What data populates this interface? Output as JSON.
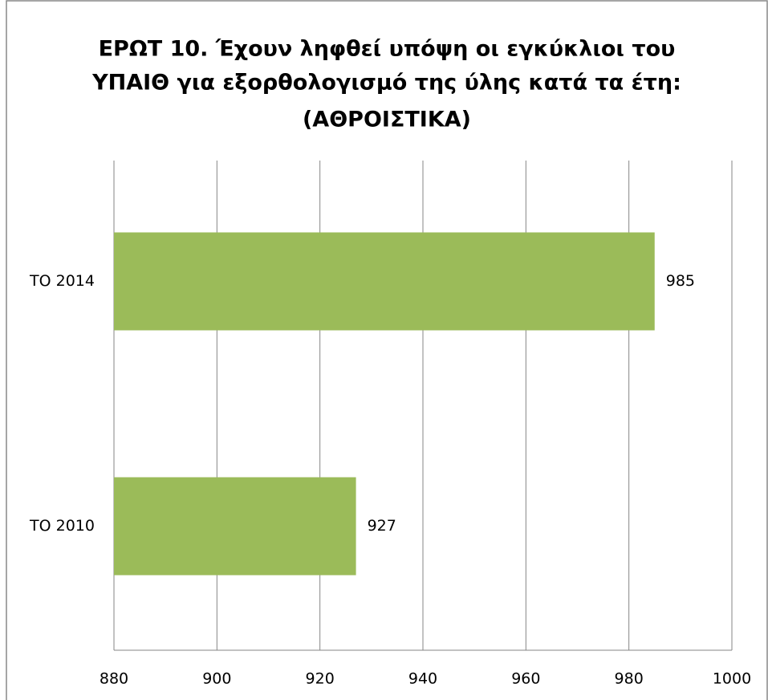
{
  "chart_data": {
    "type": "bar",
    "orientation": "horizontal",
    "title": [
      "ΕΡΩΤ 10. Έχουν ληφθεί υπόψη οι εγκύκλιοι του",
      "ΥΠΑΙΘ για εξορθολογισμό της ύλης κατά τα έτη:",
      "(ΑΘΡΟΙΣΤΙΚΑ)"
    ],
    "categories": [
      "ΤΟ 2014",
      "ΤΟ 2010"
    ],
    "values": [
      985,
      927
    ],
    "color": "#9bbb59",
    "xlim": [
      880,
      1000
    ],
    "xticks": [
      880,
      900,
      920,
      940,
      960,
      980,
      1000
    ],
    "grid": true
  }
}
